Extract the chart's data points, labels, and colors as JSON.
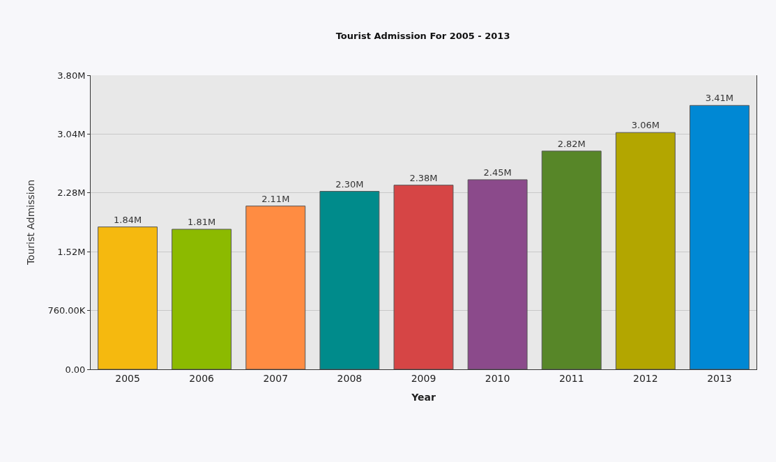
{
  "chart_data": {
    "type": "bar",
    "title": "Tourist Admission For 2005 - 2013",
    "xlabel": "Year",
    "ylabel": "Tourist Admission",
    "categories": [
      "2005",
      "2006",
      "2007",
      "2008",
      "2009",
      "2010",
      "2011",
      "2012",
      "2013"
    ],
    "values": [
      1840000,
      1810000,
      2110000,
      2300000,
      2380000,
      2450000,
      2820000,
      3060000,
      3410000
    ],
    "value_labels": [
      "1.84M",
      "1.81M",
      "2.11M",
      "2.30M",
      "2.38M",
      "2.45M",
      "2.82M",
      "3.06M",
      "3.41M"
    ],
    "colors": [
      "#f5b90f",
      "#8cba00",
      "#ff8c42",
      "#008b8b",
      "#d64545",
      "#8b4a8b",
      "#578628",
      "#b3a600",
      "#0088d4"
    ],
    "ylim": [
      0,
      3800000
    ],
    "yticks": [
      {
        "value": 0,
        "label": "0.00"
      },
      {
        "value": 760000,
        "label": "760.00K"
      },
      {
        "value": 1520000,
        "label": "1.52M"
      },
      {
        "value": 2280000,
        "label": "2.28M"
      },
      {
        "value": 3040000,
        "label": "3.04M"
      },
      {
        "value": 3800000,
        "label": "3.80M"
      }
    ],
    "grid": "y",
    "legend": false
  }
}
